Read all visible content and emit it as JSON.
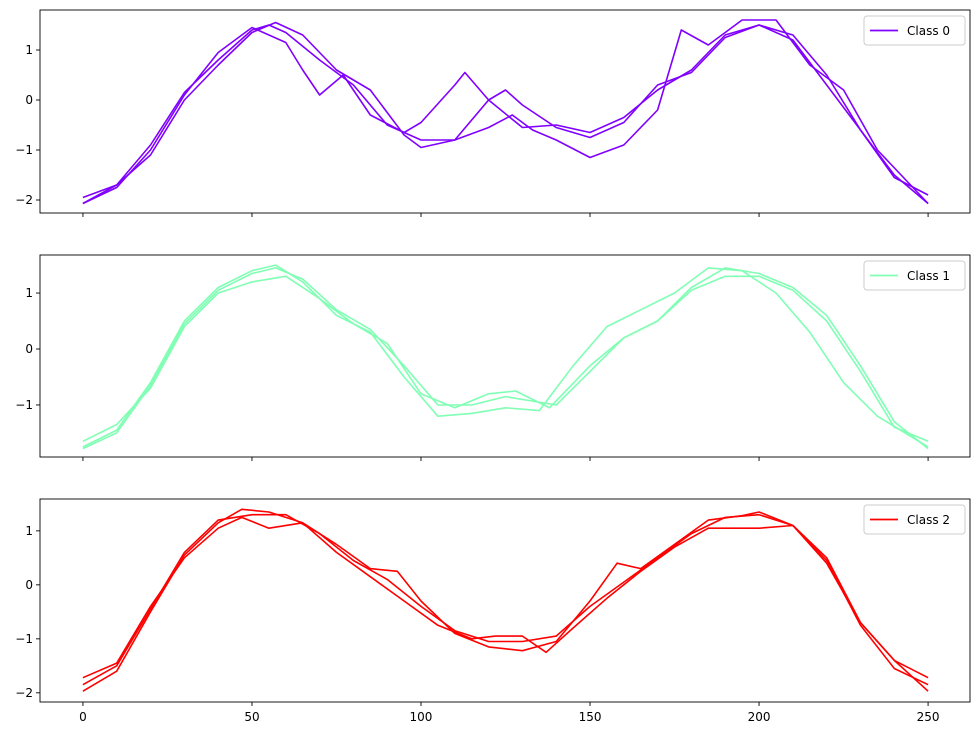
{
  "chart_data": [
    {
      "type": "line",
      "legend": "top-right",
      "xlim": [
        -12.7,
        262.4
      ],
      "ylim": [
        -2.26,
        1.8
      ],
      "xticks": [
        0,
        50,
        100,
        150,
        200,
        250
      ],
      "show_xtick_labels": false,
      "yticks": [
        1,
        0,
        -1,
        -2
      ],
      "color": "#8000ff",
      "legend_label": "Class 0",
      "series": [
        {
          "x": [
            0,
            10,
            20,
            30,
            40,
            50,
            60,
            65,
            70,
            77,
            85,
            95,
            100,
            110,
            113,
            120,
            130,
            140,
            150,
            160,
            170,
            180,
            190,
            200,
            210,
            220,
            230,
            240,
            250
          ],
          "y": [
            -2.07,
            -1.75,
            -1.0,
            0.1,
            0.95,
            1.45,
            1.15,
            0.6,
            0.1,
            0.5,
            -0.3,
            -0.65,
            -0.45,
            0.3,
            0.55,
            0.0,
            -0.55,
            -0.5,
            -0.65,
            -0.35,
            0.2,
            0.6,
            1.3,
            1.5,
            1.2,
            0.3,
            -0.6,
            -1.5,
            -2.07
          ]
        },
        {
          "x": [
            0,
            10,
            20,
            30,
            40,
            50,
            55,
            60,
            70,
            80,
            90,
            100,
            110,
            120,
            125,
            130,
            140,
            150,
            160,
            170,
            180,
            190,
            200,
            210,
            220,
            230,
            240,
            250
          ],
          "y": [
            -1.95,
            -1.7,
            -0.9,
            0.15,
            0.8,
            1.4,
            1.5,
            1.35,
            0.8,
            0.3,
            -0.5,
            -0.8,
            -0.8,
            0.0,
            0.2,
            -0.1,
            -0.55,
            -0.75,
            -0.45,
            0.3,
            0.55,
            1.25,
            1.5,
            1.3,
            0.5,
            -0.6,
            -1.55,
            -1.9
          ]
        },
        {
          "x": [
            0,
            10,
            20,
            30,
            40,
            50,
            57,
            65,
            75,
            85,
            95,
            100,
            110,
            120,
            127,
            133,
            140,
            150,
            160,
            170,
            177,
            185,
            195,
            205,
            215,
            225,
            235,
            250
          ],
          "y": [
            -2.07,
            -1.7,
            -1.1,
            0.0,
            0.7,
            1.35,
            1.55,
            1.3,
            0.6,
            0.2,
            -0.7,
            -0.95,
            -0.8,
            -0.55,
            -0.3,
            -0.6,
            -0.8,
            -1.15,
            -0.9,
            -0.2,
            1.4,
            1.1,
            1.6,
            1.6,
            0.7,
            0.2,
            -1.0,
            -2.07
          ]
        }
      ]
    },
    {
      "type": "line",
      "legend": "top-right",
      "xlim": [
        -12.7,
        262.4
      ],
      "ylim": [
        -1.93,
        1.68
      ],
      "xticks": [
        0,
        50,
        100,
        150,
        200,
        250
      ],
      "show_xtick_labels": false,
      "yticks": [
        1,
        0,
        -1
      ],
      "color": "#80ffb4",
      "legend_label": "Class 1",
      "series": [
        {
          "x": [
            0,
            10,
            20,
            30,
            40,
            50,
            57,
            65,
            75,
            85,
            95,
            105,
            115,
            125,
            135,
            145,
            155,
            165,
            175,
            185,
            195,
            205,
            215,
            225,
            235,
            250
          ],
          "y": [
            -1.75,
            -1.45,
            -0.6,
            0.5,
            1.1,
            1.4,
            1.5,
            1.2,
            0.6,
            0.3,
            -0.5,
            -1.2,
            -1.15,
            -1.05,
            -1.1,
            -0.3,
            0.4,
            0.7,
            1.0,
            1.45,
            1.4,
            1.0,
            0.3,
            -0.6,
            -1.2,
            -1.75
          ]
        },
        {
          "x": [
            0,
            10,
            20,
            30,
            40,
            50,
            60,
            70,
            80,
            90,
            100,
            110,
            120,
            128,
            138,
            150,
            160,
            170,
            180,
            190,
            200,
            210,
            220,
            230,
            240,
            250
          ],
          "y": [
            -1.65,
            -1.35,
            -0.7,
            0.4,
            1.0,
            1.2,
            1.3,
            0.9,
            0.45,
            0.1,
            -0.8,
            -1.05,
            -0.8,
            -0.75,
            -1.05,
            -0.3,
            0.2,
            0.5,
            1.05,
            1.3,
            1.3,
            1.05,
            0.5,
            -0.4,
            -1.4,
            -1.65
          ]
        },
        {
          "x": [
            0,
            10,
            20,
            30,
            40,
            50,
            57,
            65,
            75,
            85,
            95,
            105,
            115,
            125,
            140,
            150,
            160,
            170,
            180,
            190,
            200,
            210,
            220,
            230,
            240,
            250
          ],
          "y": [
            -1.78,
            -1.5,
            -0.65,
            0.45,
            1.05,
            1.35,
            1.45,
            1.25,
            0.7,
            0.35,
            -0.3,
            -1.0,
            -1.0,
            -0.85,
            -1.0,
            -0.4,
            0.2,
            0.5,
            1.1,
            1.45,
            1.35,
            1.1,
            0.6,
            -0.3,
            -1.3,
            -1.78
          ]
        }
      ]
    },
    {
      "type": "line",
      "legend": "top-right",
      "xlim": [
        -12.7,
        262.4
      ],
      "ylim": [
        -2.17,
        1.59
      ],
      "xticks": [
        0,
        50,
        100,
        150,
        200,
        250
      ],
      "show_xtick_labels": true,
      "yticks": [
        1,
        0,
        -1,
        -2
      ],
      "color": "#ff0000",
      "legend_label": "Class 2",
      "series": [
        {
          "x": [
            0,
            10,
            20,
            30,
            40,
            47,
            55,
            65,
            75,
            85,
            93,
            100,
            110,
            120,
            130,
            140,
            150,
            158,
            165,
            175,
            185,
            195,
            200,
            210,
            220,
            230,
            240,
            250
          ],
          "y": [
            -1.97,
            -1.6,
            -0.5,
            0.55,
            1.15,
            1.4,
            1.35,
            1.15,
            0.75,
            0.3,
            0.25,
            -0.3,
            -0.9,
            -1.15,
            -1.22,
            -1.05,
            -0.3,
            0.4,
            0.3,
            0.75,
            1.2,
            1.28,
            1.35,
            1.1,
            0.4,
            -0.7,
            -1.4,
            -1.97
          ]
        },
        {
          "x": [
            0,
            10,
            20,
            30,
            40,
            47,
            55,
            65,
            75,
            85,
            95,
            105,
            115,
            122,
            130,
            137,
            145,
            155,
            165,
            175,
            185,
            200,
            210,
            220,
            230,
            240,
            250
          ],
          "y": [
            -1.72,
            -1.45,
            -0.4,
            0.5,
            1.05,
            1.25,
            1.05,
            1.15,
            0.6,
            0.15,
            -0.3,
            -0.75,
            -1.0,
            -0.95,
            -0.95,
            -1.25,
            -0.8,
            -0.25,
            0.25,
            0.7,
            1.05,
            1.05,
            1.1,
            0.5,
            -0.7,
            -1.4,
            -1.72
          ]
        },
        {
          "x": [
            0,
            10,
            20,
            30,
            40,
            50,
            60,
            70,
            80,
            90,
            100,
            110,
            120,
            130,
            140,
            150,
            160,
            170,
            180,
            190,
            200,
            210,
            220,
            230,
            240,
            250
          ],
          "y": [
            -1.85,
            -1.5,
            -0.45,
            0.6,
            1.2,
            1.3,
            1.3,
            0.95,
            0.45,
            0.1,
            -0.4,
            -0.85,
            -1.05,
            -1.05,
            -0.95,
            -0.4,
            0.05,
            0.5,
            0.95,
            1.25,
            1.3,
            1.1,
            0.45,
            -0.75,
            -1.55,
            -1.85
          ]
        }
      ]
    }
  ]
}
